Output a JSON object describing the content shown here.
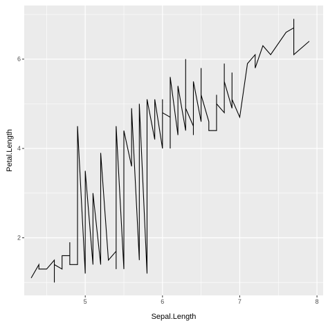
{
  "chart_data": {
    "type": "line",
    "title": "",
    "xlabel": "Sepal.Length",
    "ylabel": "Petal.Length",
    "xlim": [
      4.21,
      8.08
    ],
    "ylim": [
      0.71,
      7.2
    ],
    "x_ticks": [
      5,
      6,
      7,
      8
    ],
    "y_ticks": [
      2,
      4,
      6
    ],
    "x_tick_labels": [
      "5",
      "6",
      "7",
      "8"
    ],
    "y_tick_labels": [
      "2",
      "4",
      "6"
    ],
    "grid": true,
    "legend": "none",
    "colors": {
      "panel": "#ebebeb",
      "grid": "#ffffff",
      "line": "#000000",
      "tick": "#333333"
    },
    "series": [
      {
        "points": [
          [
            4.3,
            1.1
          ],
          [
            4.4,
            1.4
          ],
          [
            4.4,
            1.3
          ],
          [
            4.5,
            1.3
          ],
          [
            4.6,
            1.5
          ],
          [
            4.6,
            1.0
          ],
          [
            4.6,
            1.4
          ],
          [
            4.7,
            1.3
          ],
          [
            4.7,
            1.6
          ],
          [
            4.8,
            1.6
          ],
          [
            4.8,
            1.9
          ],
          [
            4.8,
            1.4
          ],
          [
            4.9,
            1.4
          ],
          [
            4.9,
            4.5
          ],
          [
            5.0,
            1.2
          ],
          [
            5.0,
            3.5
          ],
          [
            5.1,
            1.4
          ],
          [
            5.1,
            3.0
          ],
          [
            5.2,
            1.4
          ],
          [
            5.2,
            3.9
          ],
          [
            5.3,
            1.5
          ],
          [
            5.4,
            1.7
          ],
          [
            5.4,
            1.3
          ],
          [
            5.4,
            4.5
          ],
          [
            5.5,
            1.3
          ],
          [
            5.5,
            4.4
          ],
          [
            5.6,
            3.6
          ],
          [
            5.6,
            4.9
          ],
          [
            5.7,
            1.5
          ],
          [
            5.7,
            5.0
          ],
          [
            5.8,
            1.2
          ],
          [
            5.8,
            5.1
          ],
          [
            5.9,
            4.2
          ],
          [
            5.9,
            5.1
          ],
          [
            6.0,
            4.0
          ],
          [
            6.0,
            5.1
          ],
          [
            6.0,
            4.8
          ],
          [
            6.1,
            4.7
          ],
          [
            6.1,
            4.0
          ],
          [
            6.1,
            5.6
          ],
          [
            6.2,
            4.3
          ],
          [
            6.2,
            5.4
          ],
          [
            6.3,
            4.4
          ],
          [
            6.3,
            6.0
          ],
          [
            6.3,
            4.9
          ],
          [
            6.4,
            4.5
          ],
          [
            6.4,
            4.3
          ],
          [
            6.4,
            5.5
          ],
          [
            6.5,
            4.6
          ],
          [
            6.5,
            5.8
          ],
          [
            6.5,
            5.2
          ],
          [
            6.6,
            4.6
          ],
          [
            6.6,
            4.4
          ],
          [
            6.7,
            4.4
          ],
          [
            6.7,
            5.2
          ],
          [
            6.7,
            5.0
          ],
          [
            6.8,
            4.8
          ],
          [
            6.8,
            5.9
          ],
          [
            6.8,
            5.5
          ],
          [
            6.9,
            4.9
          ],
          [
            6.9,
            5.7
          ],
          [
            6.9,
            5.1
          ],
          [
            7.0,
            4.7
          ],
          [
            7.1,
            5.9
          ],
          [
            7.2,
            6.1
          ],
          [
            7.2,
            5.8
          ],
          [
            7.3,
            6.3
          ],
          [
            7.4,
            6.1
          ],
          [
            7.6,
            6.6
          ],
          [
            7.7,
            6.7
          ],
          [
            7.7,
            6.9
          ],
          [
            7.7,
            6.1
          ],
          [
            7.9,
            6.4
          ]
        ]
      }
    ]
  }
}
